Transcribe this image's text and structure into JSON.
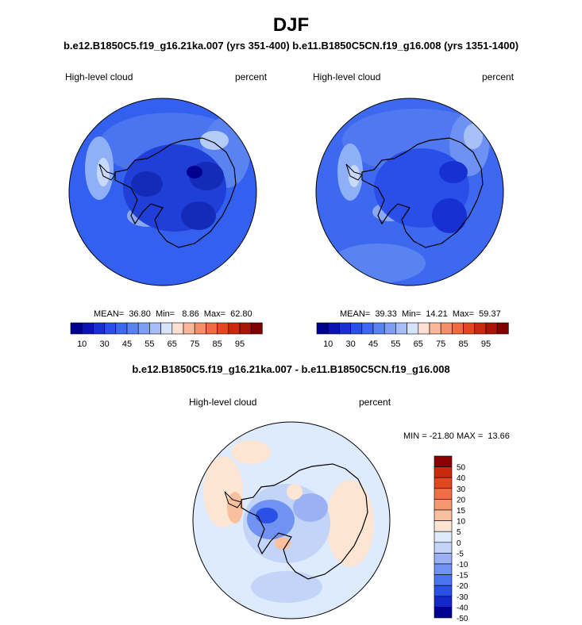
{
  "title": "DJF",
  "subtitle": "b.e12.B1850C5.f19_g16.21ka.007 (yrs 351-400) b.e11.B1850C5CN.f19_g16.008 (yrs 1351-1400)",
  "diff_title": "b.e12.B1850C5.f19_g16.21ka.007 - b.e11.B1850C5CN.f19_g16.008",
  "panels": [
    {
      "variable": "High-level cloud",
      "units": "percent",
      "stats": "MEAN=  36.80  Min=   8.86  Max=  62.80"
    },
    {
      "variable": "High-level cloud",
      "units": "percent",
      "stats": "MEAN=  39.33  Min=  14.21  Max=  59.37"
    },
    {
      "variable": "High-level cloud",
      "units": "percent",
      "stats": "MIN = -21.80 MAX =  13.66"
    }
  ],
  "abs_colorbar": {
    "colors": [
      "#00008f",
      "#0a14b4",
      "#1630d2",
      "#2a4ee8",
      "#3d68f0",
      "#5a83f2",
      "#7d9ef4",
      "#a6bdf7",
      "#d6e4fb",
      "#fde0d2",
      "#f9b89a",
      "#f58f68",
      "#f06a42",
      "#e4471f",
      "#c92a0d",
      "#a81505",
      "#800000"
    ],
    "tick_labels": [
      "10",
      "30",
      "45",
      "55",
      "65",
      "75",
      "85",
      "95"
    ]
  },
  "diff_colorbar": {
    "colors": [
      "#00008f",
      "#1428c8",
      "#2a50e8",
      "#4a74f0",
      "#7092f2",
      "#9ab2f5",
      "#c3d4f9",
      "#deeafd",
      "#fde5d4",
      "#f9c0a0",
      "#f59770",
      "#f06e44",
      "#e4471f",
      "#c92a0d",
      "#8b0000"
    ],
    "tick_labels": [
      "50",
      "40",
      "30",
      "20",
      "15",
      "10",
      "5",
      "0",
      "-5",
      "-10",
      "-15",
      "-20",
      "-30",
      "-40",
      "-50"
    ]
  }
}
